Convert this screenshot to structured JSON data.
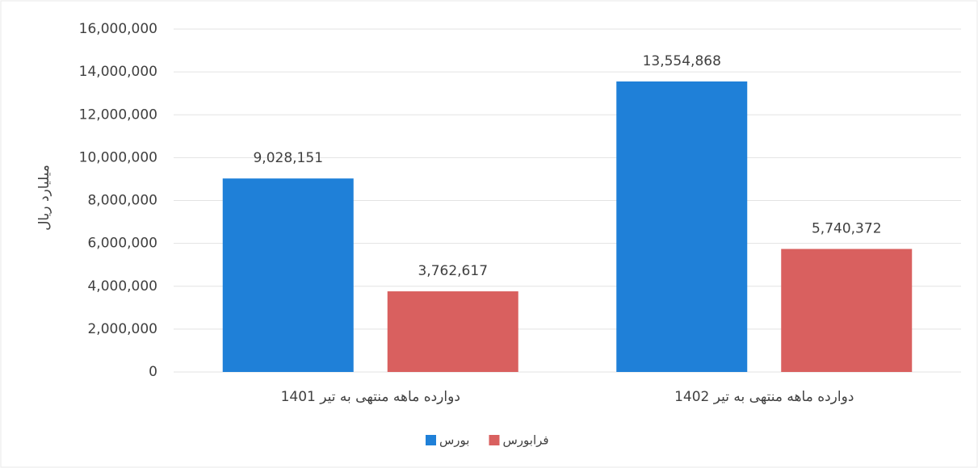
{
  "chart_data": {
    "type": "bar",
    "y_label": "میلیارد ریال",
    "categories": [
      "دوارده ماهه منتهی به تیر 1401",
      "دوارده ماهه منتهی به تیر 1402"
    ],
    "series": [
      {
        "name": "بورس",
        "color": "#1f80d8",
        "values": [
          9028151,
          13554868
        ],
        "value_labels": [
          "9,028,151",
          "13,554,868"
        ]
      },
      {
        "name": "فرابورس",
        "color": "#d9605f",
        "values": [
          3762617,
          5740372
        ],
        "value_labels": [
          "3,762,617",
          "5,740,372"
        ]
      }
    ],
    "ylim": [
      0,
      16000000
    ],
    "yticks": [
      0,
      {
        "value": 2000000,
        "label": "2,000,000"
      },
      {
        "value": 4000000,
        "label": "4,000,000"
      },
      {
        "value": 6000000,
        "label": "6,000,000"
      },
      {
        "value": 8000000,
        "label": "8,000,000"
      },
      {
        "value": 10000000,
        "label": "10,000,000"
      },
      {
        "value": 12000000,
        "label": "12,000,000"
      },
      {
        "value": 14000000,
        "label": "14,000,000"
      },
      {
        "value": 16000000,
        "label": "16,000,000"
      }
    ],
    "grid": true,
    "legend": "bottom"
  }
}
